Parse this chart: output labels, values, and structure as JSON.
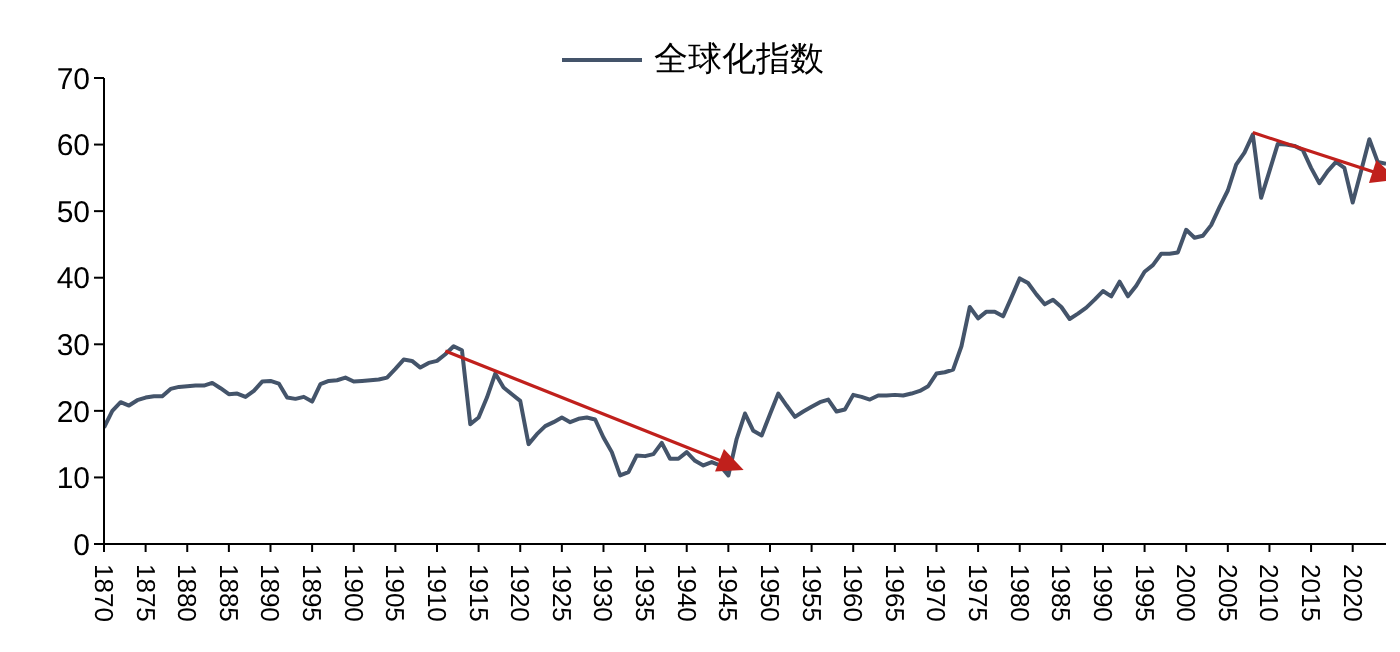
{
  "chart_data": {
    "type": "line",
    "legend": "top",
    "grid": false,
    "marker": "none",
    "line_style": "solid",
    "xlim": [
      1870,
      2024
    ],
    "xticks": [
      1870,
      1875,
      1880,
      1885,
      1890,
      1895,
      1900,
      1905,
      1910,
      1915,
      1920,
      1925,
      1930,
      1935,
      1940,
      1945,
      1950,
      1955,
      1960,
      1965,
      1970,
      1975,
      1980,
      1985,
      1990,
      1995,
      2000,
      2005,
      2010,
      2015,
      2020
    ],
    "ylim": [
      0,
      70
    ],
    "yticks": [
      0,
      10,
      20,
      30,
      40,
      50,
      60,
      70
    ],
    "x": [
      1870,
      1871,
      1872,
      1873,
      1874,
      1875,
      1876,
      1877,
      1878,
      1879,
      1880,
      1881,
      1882,
      1883,
      1884,
      1885,
      1886,
      1887,
      1888,
      1889,
      1890,
      1891,
      1892,
      1893,
      1894,
      1895,
      1896,
      1897,
      1898,
      1899,
      1900,
      1901,
      1902,
      1903,
      1904,
      1905,
      1906,
      1907,
      1908,
      1909,
      1910,
      1911,
      1912,
      1913,
      1914,
      1915,
      1916,
      1917,
      1918,
      1919,
      1920,
      1921,
      1922,
      1923,
      1924,
      1925,
      1926,
      1927,
      1928,
      1929,
      1930,
      1931,
      1932,
      1933,
      1934,
      1935,
      1936,
      1937,
      1938,
      1939,
      1940,
      1941,
      1942,
      1943,
      1944,
      1945,
      1946,
      1947,
      1948,
      1949,
      1950,
      1951,
      1952,
      1953,
      1954,
      1955,
      1956,
      1957,
      1958,
      1959,
      1960,
      1961,
      1962,
      1963,
      1964,
      1965,
      1966,
      1967,
      1968,
      1969,
      1970,
      1971,
      1972,
      1973,
      1974,
      1975,
      1976,
      1977,
      1978,
      1979,
      1980,
      1981,
      1982,
      1983,
      1984,
      1985,
      1986,
      1987,
      1988,
      1989,
      1990,
      1991,
      1992,
      1993,
      1994,
      1995,
      1996,
      1997,
      1998,
      1999,
      2000,
      2001,
      2002,
      2003,
      2004,
      2005,
      2006,
      2007,
      2008,
      2009,
      2010,
      2011,
      2012,
      2013,
      2014,
      2015,
      2016,
      2017,
      2018,
      2019,
      2020,
      2021,
      2022,
      2023,
      2024
    ],
    "series": [
      {
        "name": "全球化指数",
        "color": "#44546a",
        "values": [
          17.5,
          20,
          21.3,
          20.8,
          21.6,
          22,
          22.2,
          22.2,
          23.3,
          23.6,
          23.7,
          23.8,
          23.8,
          24.2,
          23.4,
          22.5,
          22.6,
          22.1,
          23,
          24.4,
          24.5,
          24.1,
          22,
          21.8,
          22.1,
          21.4,
          24,
          24.5,
          24.6,
          25,
          24.4,
          24.5,
          24.6,
          24.7,
          25,
          26.3,
          27.7,
          27.5,
          26.5,
          27.2,
          27.5,
          28.5,
          29.7,
          29.1,
          18,
          19,
          22,
          25.6,
          23.5,
          22.5,
          21.5,
          15,
          16.5,
          17.7,
          18.3,
          19,
          18.3,
          18.8,
          19,
          18.7,
          16,
          13.8,
          10.3,
          10.8,
          13.3,
          13.2,
          13.5,
          15.2,
          12.8,
          12.8,
          13.8,
          12.5,
          11.8,
          12.3,
          11.8,
          10.3,
          15.8,
          19.6,
          17,
          16.3,
          19.5,
          22.6,
          20.8,
          19.1,
          19.9,
          20.6,
          21.3,
          21.7,
          19.9,
          20.2,
          22.4,
          22.1,
          21.7,
          22.3,
          22.3,
          22.4,
          22.3,
          22.6,
          23,
          23.7,
          25.6,
          25.8,
          26.2,
          29.7,
          35.6,
          33.9,
          34.9,
          34.9,
          34.2,
          37,
          39.9,
          39.2,
          37.5,
          36,
          36.7,
          35.6,
          33.8,
          34.6,
          35.5,
          36.7,
          38,
          37.2,
          39.4,
          37.2,
          38.8,
          40.9,
          41.9,
          43.6,
          43.6,
          43.8,
          47.2,
          46,
          46.3,
          47.9,
          50.6,
          53.1,
          57,
          58.8,
          61.5,
          52,
          56,
          60.1,
          60,
          59.8,
          59.2,
          56.5,
          54.2,
          56,
          57.4,
          56.5,
          51.3,
          56,
          60.8,
          57.4,
          57.1
        ]
      },
      {
        "type": "line",
        "marker": "triangle",
        "color": "#c0201c",
        "x": [
          1911,
          1945.5
        ],
        "values": [
          29,
          11.8
        ]
      },
      {
        "type": "line",
        "marker": "triangle",
        "color": "#c0201c",
        "x": [
          2008,
          2024
        ],
        "values": [
          61.8,
          55.3
        ]
      }
    ]
  }
}
